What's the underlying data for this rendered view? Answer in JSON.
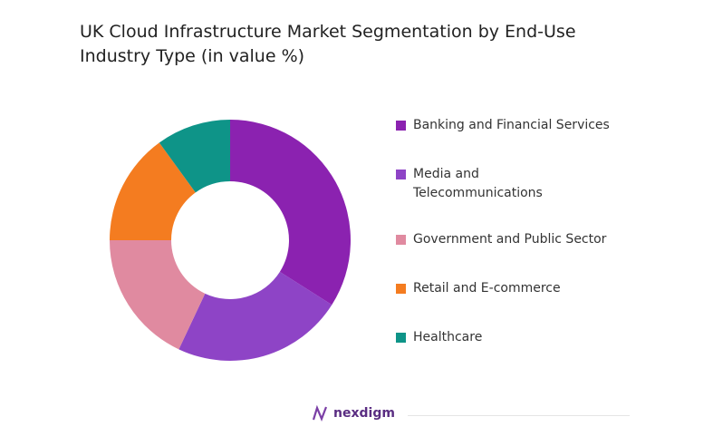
{
  "chart_data": {
    "type": "donut",
    "title": "UK Cloud Infrastructure Market Segmentation by End-Use Industry Type (in value %)",
    "categories": [
      "Banking and Financial Services",
      "Media and Telecommunications",
      "Government and Public Sector",
      "Retail and E-commerce",
      "Healthcare"
    ],
    "values": [
      34,
      23,
      18,
      15,
      10
    ],
    "colors": [
      "#8b22b0",
      "#8e44c6",
      "#e08aa0",
      "#f47c20",
      "#0e9488"
    ]
  },
  "brand": "nexdigm"
}
